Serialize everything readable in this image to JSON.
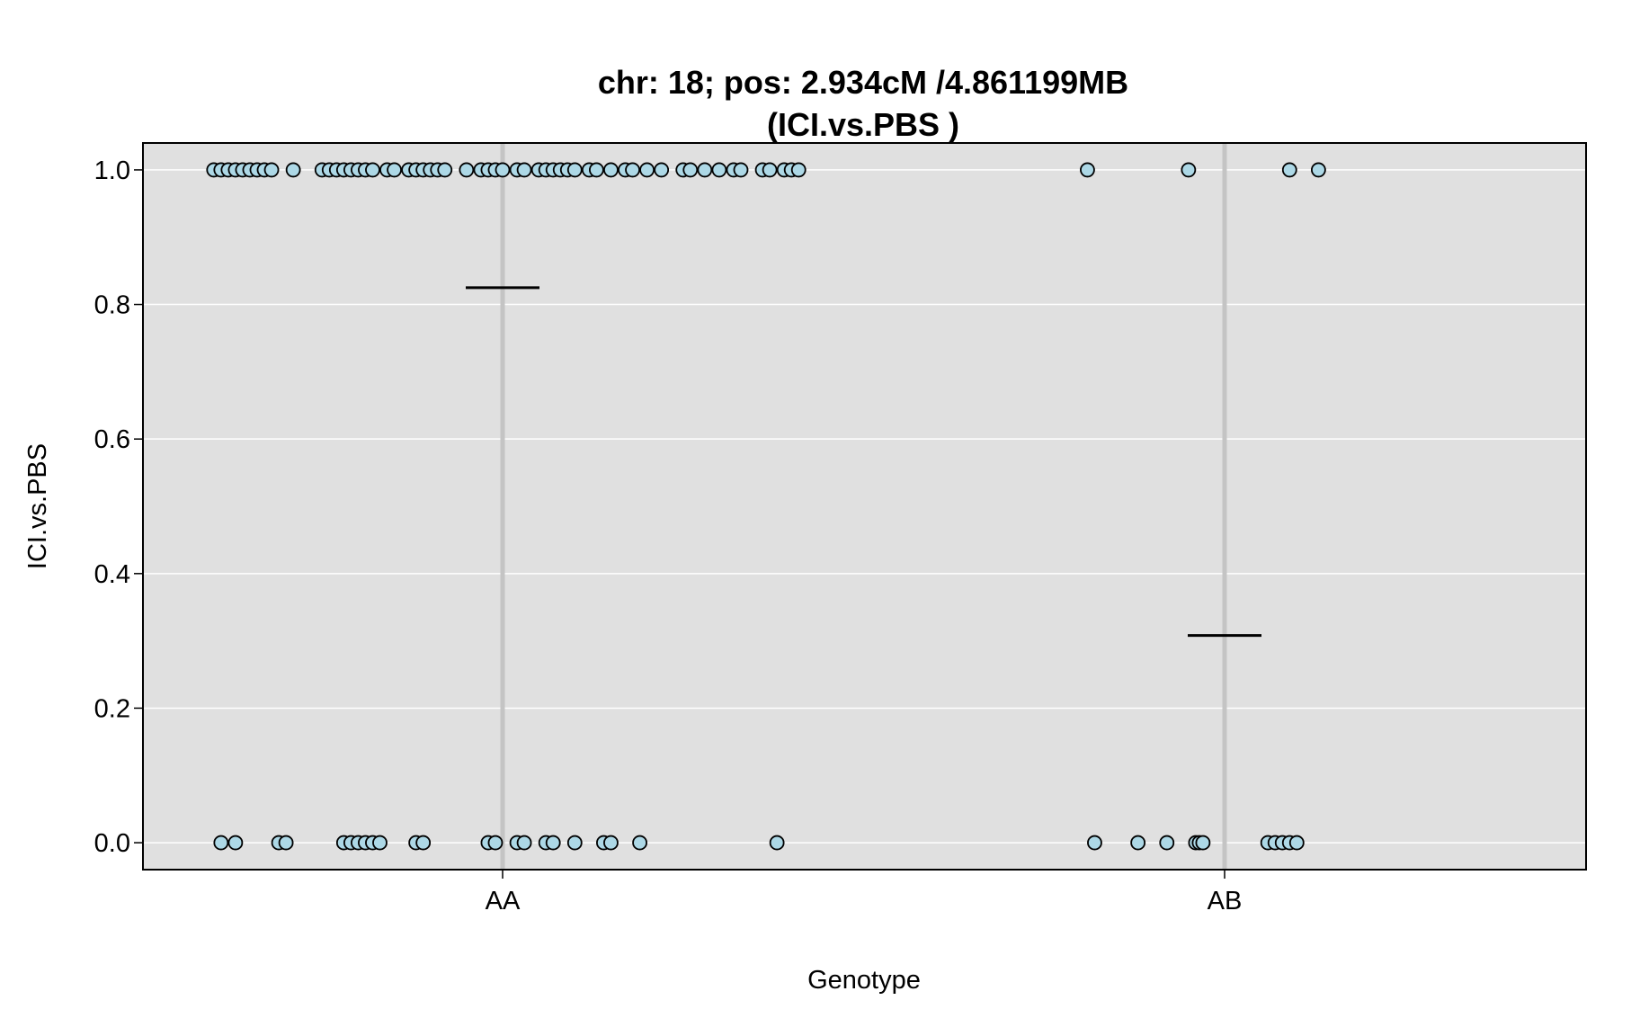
{
  "chart_data": {
    "type": "scatter",
    "title": "chr: 18; pos: 2.934cM /4.861199MB",
    "subtitle": "(ICI.vs.PBS )",
    "xlabel": "Genotype",
    "ylabel": "ICI.vs.PBS",
    "categories": [
      "AA",
      "AB"
    ],
    "ylim": [
      -0.04,
      1.04
    ],
    "yticks": [
      "0.0",
      "0.2",
      "0.4",
      "0.6",
      "0.8",
      "1.0"
    ],
    "grid": true,
    "legend": "none",
    "colors": {
      "panel_background": "#e0e0e0",
      "grid_line": "#ffffff",
      "category_line": "#c4c4c4",
      "point_fill": "#add8e6",
      "point_stroke": "#000000",
      "mean_line": "#000000"
    },
    "means": [
      {
        "category": "AA",
        "value": 0.825
      },
      {
        "category": "AB",
        "value": 0.308
      }
    ],
    "points": {
      "AA": {
        "offsets_y1": [
          -0.4,
          -0.39,
          -0.38,
          -0.37,
          -0.36,
          -0.35,
          -0.34,
          -0.33,
          -0.32,
          -0.29,
          -0.25,
          -0.24,
          -0.23,
          -0.22,
          -0.21,
          -0.2,
          -0.19,
          -0.18,
          -0.16,
          -0.15,
          -0.13,
          -0.12,
          -0.11,
          -0.1,
          -0.09,
          -0.08,
          -0.05,
          -0.03,
          -0.02,
          -0.01,
          0.0,
          0.02,
          0.03,
          0.05,
          0.06,
          0.07,
          0.08,
          0.09,
          0.1,
          0.12,
          0.13,
          0.15,
          0.17,
          0.18,
          0.2,
          0.22,
          0.25,
          0.26,
          0.28,
          0.3,
          0.32,
          0.33,
          0.36,
          0.37,
          0.39,
          0.4,
          0.41
        ],
        "offsets_y0": [
          -0.39,
          -0.37,
          -0.31,
          -0.3,
          -0.22,
          -0.21,
          -0.2,
          -0.19,
          -0.18,
          -0.17,
          -0.12,
          -0.11,
          -0.02,
          -0.01,
          0.02,
          0.03,
          0.06,
          0.07,
          0.1,
          0.14,
          0.15,
          0.19,
          0.38
        ]
      },
      "AB": {
        "offsets_y1": [
          -0.19,
          -0.05,
          0.09,
          0.13
        ],
        "offsets_y0": [
          -0.18,
          -0.12,
          -0.08,
          -0.04,
          -0.035,
          -0.03,
          0.06,
          0.07,
          0.08,
          0.09,
          0.1
        ]
      }
    }
  }
}
